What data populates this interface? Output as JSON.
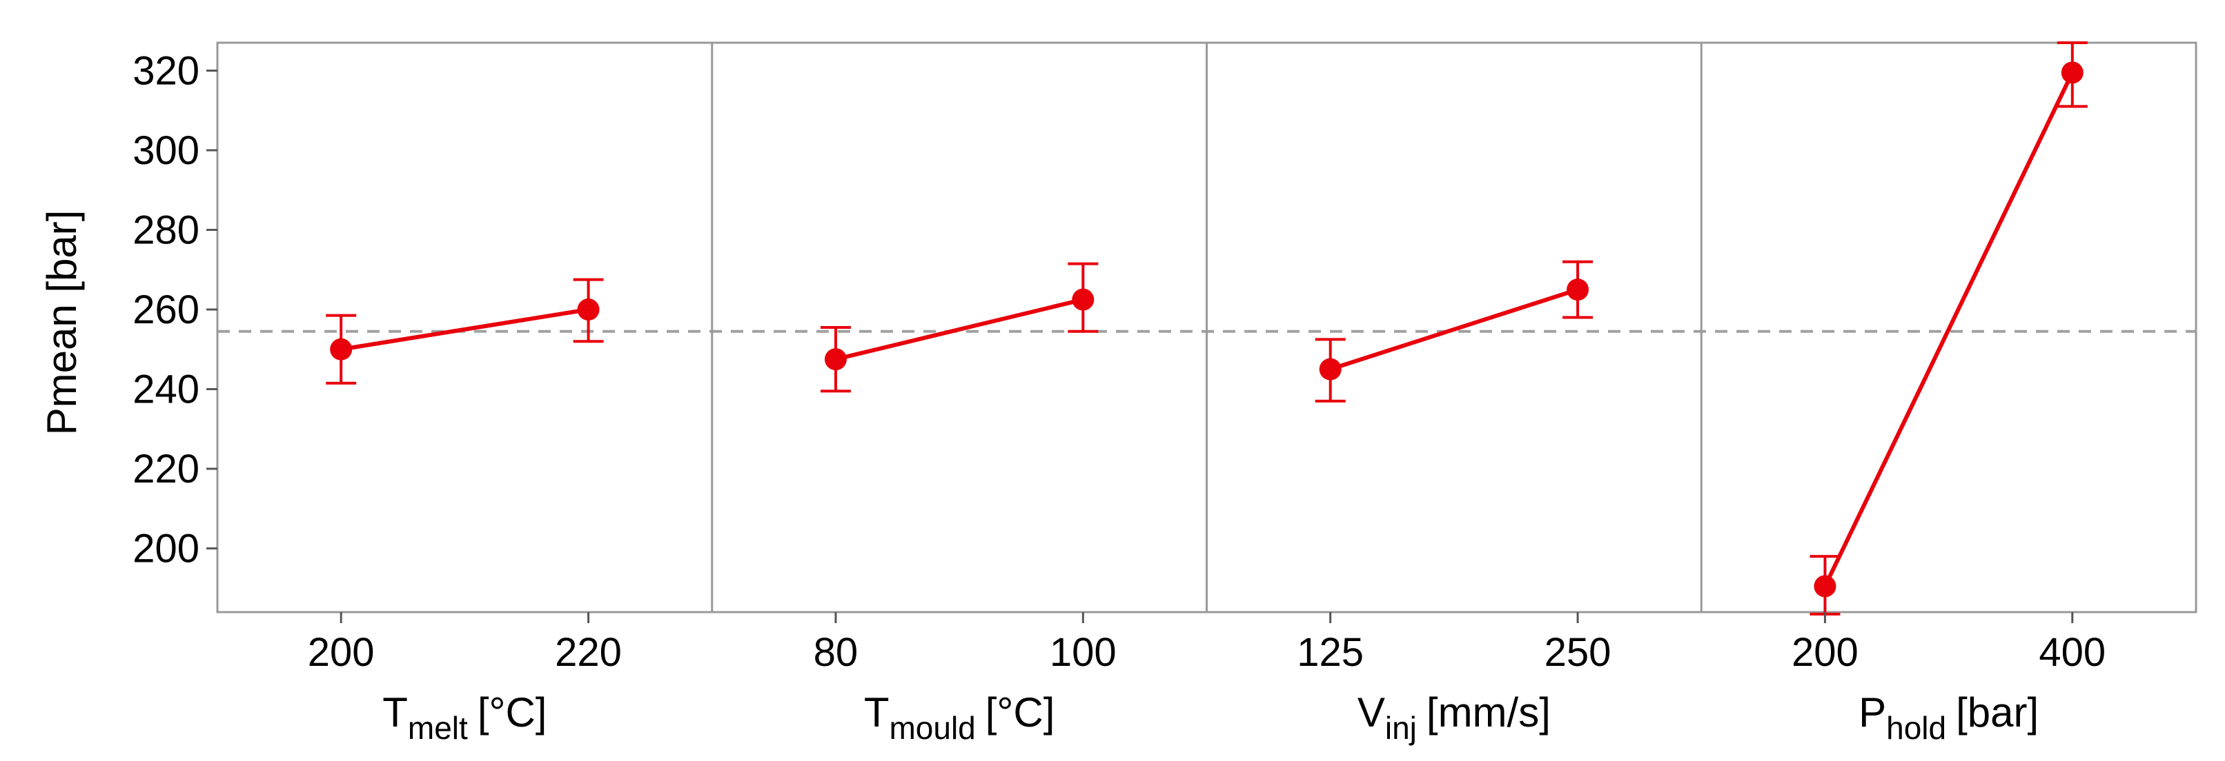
{
  "chart_data": {
    "type": "main-effects-plot",
    "ylabel": "Pmean [bar]",
    "ylim": [
      184,
      327
    ],
    "yticks": [
      200,
      220,
      240,
      260,
      280,
      300,
      320
    ],
    "grand_mean": 254.5,
    "colors": {
      "series": "#e8000b",
      "mean_line": "#a0a0a0",
      "frame": "#999999"
    },
    "panels": [
      {
        "factor": "T",
        "subscript": "melt",
        "unit": "[°C]",
        "levels": [
          "200",
          "220"
        ],
        "means": [
          250,
          260
        ],
        "ci_low": [
          241.5,
          252
        ],
        "ci_high": [
          258.5,
          267.5
        ]
      },
      {
        "factor": "T",
        "subscript": "mould",
        "unit": "[°C]",
        "levels": [
          "80",
          "100"
        ],
        "means": [
          247.5,
          262.5
        ],
        "ci_low": [
          239.5,
          254.5
        ],
        "ci_high": [
          255.5,
          271.5
        ]
      },
      {
        "factor": "V",
        "subscript": "inj",
        "unit": "[mm/s]",
        "levels": [
          "125",
          "250"
        ],
        "means": [
          245,
          265
        ],
        "ci_low": [
          237,
          258
        ],
        "ci_high": [
          252.5,
          272
        ]
      },
      {
        "factor": "P",
        "subscript": "hold",
        "unit": "[bar]",
        "levels": [
          "200",
          "400"
        ],
        "means": [
          190.5,
          319.5
        ],
        "ci_low": [
          183.5,
          311
        ],
        "ci_high": [
          198,
          327
        ]
      }
    ]
  }
}
